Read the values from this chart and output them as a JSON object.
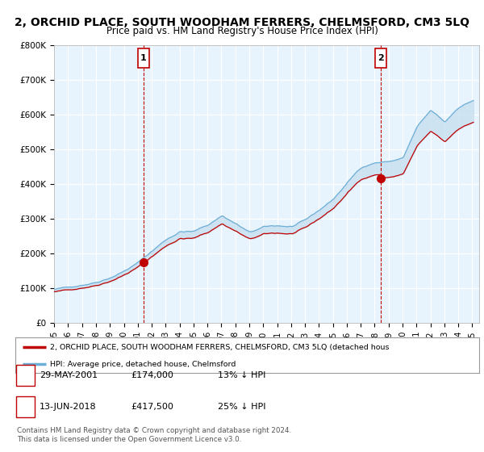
{
  "title": "2, ORCHID PLACE, SOUTH WOODHAM FERRERS, CHELMSFORD, CM3 5LQ",
  "subtitle": "Price paid vs. HM Land Registry's House Price Index (HPI)",
  "title_fontsize": 10,
  "subtitle_fontsize": 8.5,
  "ylabel_ticks": [
    "£0",
    "£100K",
    "£200K",
    "£300K",
    "£400K",
    "£500K",
    "£600K",
    "£700K",
    "£800K"
  ],
  "ytick_values": [
    0,
    100000,
    200000,
    300000,
    400000,
    500000,
    600000,
    700000,
    800000
  ],
  "ylim": [
    0,
    800000
  ],
  "xlim_start": 1995.0,
  "xlim_end": 2025.5,
  "hpi_color": "#6baed6",
  "price_color": "#c00000",
  "fill_color": "#ddeeff",
  "legend_label_red": "2, ORCHID PLACE, SOUTH WOODHAM FERRERS, CHELMSFORD, CM3 5LQ (detached hous",
  "legend_label_blue": "HPI: Average price, detached house, Chelmsford",
  "sale1_x": 2001.41,
  "sale1_y": 174000,
  "sale1_label": "1",
  "sale2_x": 2018.45,
  "sale2_y": 417500,
  "sale2_label": "2",
  "footnote1": "Contains HM Land Registry data © Crown copyright and database right 2024.",
  "footnote2": "This data is licensed under the Open Government Licence v3.0.",
  "table_rows": [
    [
      "1",
      "29-MAY-2001",
      "£174,000",
      "13% ↓ HPI"
    ],
    [
      "2",
      "13-JUN-2018",
      "£417,500",
      "25% ↓ HPI"
    ]
  ],
  "background_color": "#ffffff",
  "grid_color": "#cccccc"
}
